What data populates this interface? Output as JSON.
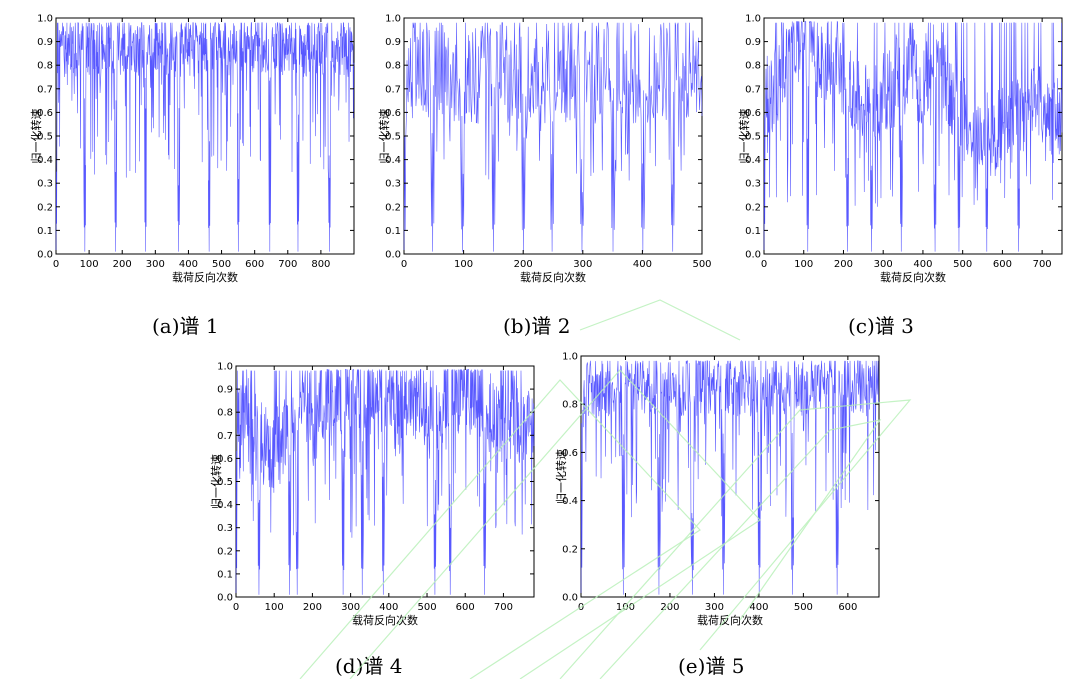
{
  "chart_data": [
    {
      "id": "a",
      "type": "line",
      "caption": "(a)谱 1",
      "xlabel": "载荷反向次数",
      "ylabel": "归一化转速",
      "xlim": [
        0,
        900
      ],
      "ylim": [
        0,
        1.0
      ],
      "xticks": [
        "0",
        "100",
        "200",
        "300",
        "400",
        "500",
        "600",
        "700",
        "800"
      ],
      "yticks": [
        "0.0",
        "0.1",
        "0.2",
        "0.3",
        "0.4",
        "0.5",
        "0.6",
        "0.7",
        "0.8",
        "0.9",
        "1.0"
      ],
      "n_points": 900,
      "pattern": "blocks",
      "block_len": 92,
      "dips": [
        0,
        87,
        180,
        270,
        370,
        462,
        550,
        645,
        730,
        825
      ],
      "dip_floor": 0.11,
      "band_low": 0.75,
      "band_high": 0.98,
      "min_floor": 0.32,
      "color": "#3b3bff"
    },
    {
      "id": "b",
      "type": "line",
      "caption": "(b)谱 2",
      "xlabel": "载荷反向次数",
      "ylabel": "归一化转速",
      "xlim": [
        0,
        500
      ],
      "ylim": [
        0,
        1.0
      ],
      "xticks": [
        "0",
        "100",
        "200",
        "300",
        "400",
        "500"
      ],
      "yticks": [
        "0.0",
        "0.1",
        "0.2",
        "0.3",
        "0.4",
        "0.5",
        "0.6",
        "0.7",
        "0.8",
        "0.9",
        "1.0"
      ],
      "n_points": 500,
      "pattern": "sparse",
      "dips": [
        0,
        48,
        98,
        150,
        200,
        248,
        298,
        350,
        400,
        450
      ],
      "dip_floor": 0.1,
      "band_low": 0.55,
      "band_high": 0.98,
      "min_floor": 0.3,
      "color": "#3b3bff"
    },
    {
      "id": "c",
      "type": "line",
      "caption": "(c)谱 3",
      "xlabel": "载荷反向次数",
      "ylabel": "归一化转速",
      "xlim": [
        0,
        750
      ],
      "ylim": [
        0,
        1.0
      ],
      "xticks": [
        "0",
        "100",
        "200",
        "300",
        "400",
        "500",
        "600",
        "700"
      ],
      "yticks": [
        "0.0",
        "0.1",
        "0.2",
        "0.3",
        "0.4",
        "0.5",
        "0.6",
        "0.7",
        "0.8",
        "0.9",
        "1.0"
      ],
      "n_points": 750,
      "pattern": "varying",
      "dips": [
        0,
        110,
        210,
        270,
        345,
        430,
        490,
        560,
        640
      ],
      "dip_floor": 0.1,
      "band_low": 0.45,
      "band_high": 0.98,
      "min_floor": 0.2,
      "color": "#3b3bff"
    },
    {
      "id": "d",
      "type": "line",
      "caption": "(d)谱 4",
      "xlabel": "载荷反向次数",
      "ylabel": "归一化转速",
      "xlim": [
        0,
        780
      ],
      "ylim": [
        0,
        1.0
      ],
      "xticks": [
        "0",
        "100",
        "200",
        "300",
        "400",
        "500",
        "600",
        "700"
      ],
      "yticks": [
        "0.0",
        "0.1",
        "0.2",
        "0.3",
        "0.4",
        "0.5",
        "0.6",
        "0.7",
        "0.8",
        "0.9",
        "1.0"
      ],
      "n_points": 780,
      "pattern": "varying",
      "dips": [
        0,
        60,
        140,
        160,
        280,
        330,
        385,
        520,
        560,
        650
      ],
      "dip_floor": 0.11,
      "band_low": 0.5,
      "band_high": 0.98,
      "min_floor": 0.25,
      "color": "#3b3bff"
    },
    {
      "id": "e",
      "type": "line",
      "caption": "(e)谱 5",
      "xlabel": "载荷反向次数",
      "ylabel": "归一化转速",
      "xlim": [
        0,
        670
      ],
      "ylim": [
        0,
        1.0
      ],
      "xticks": [
        "0",
        "100",
        "200",
        "300",
        "400",
        "500",
        "600"
      ],
      "yticks": [
        "0.0",
        "0.2",
        "0.4",
        "0.6",
        "0.8",
        "1.0"
      ],
      "n_points": 670,
      "pattern": "blocks",
      "block_len": 80,
      "dips": [
        0,
        95,
        175,
        250,
        320,
        400,
        475,
        575
      ],
      "dip_floor": 0.11,
      "band_low": 0.75,
      "band_high": 0.98,
      "min_floor": 0.32,
      "color": "#3b3bff"
    }
  ]
}
